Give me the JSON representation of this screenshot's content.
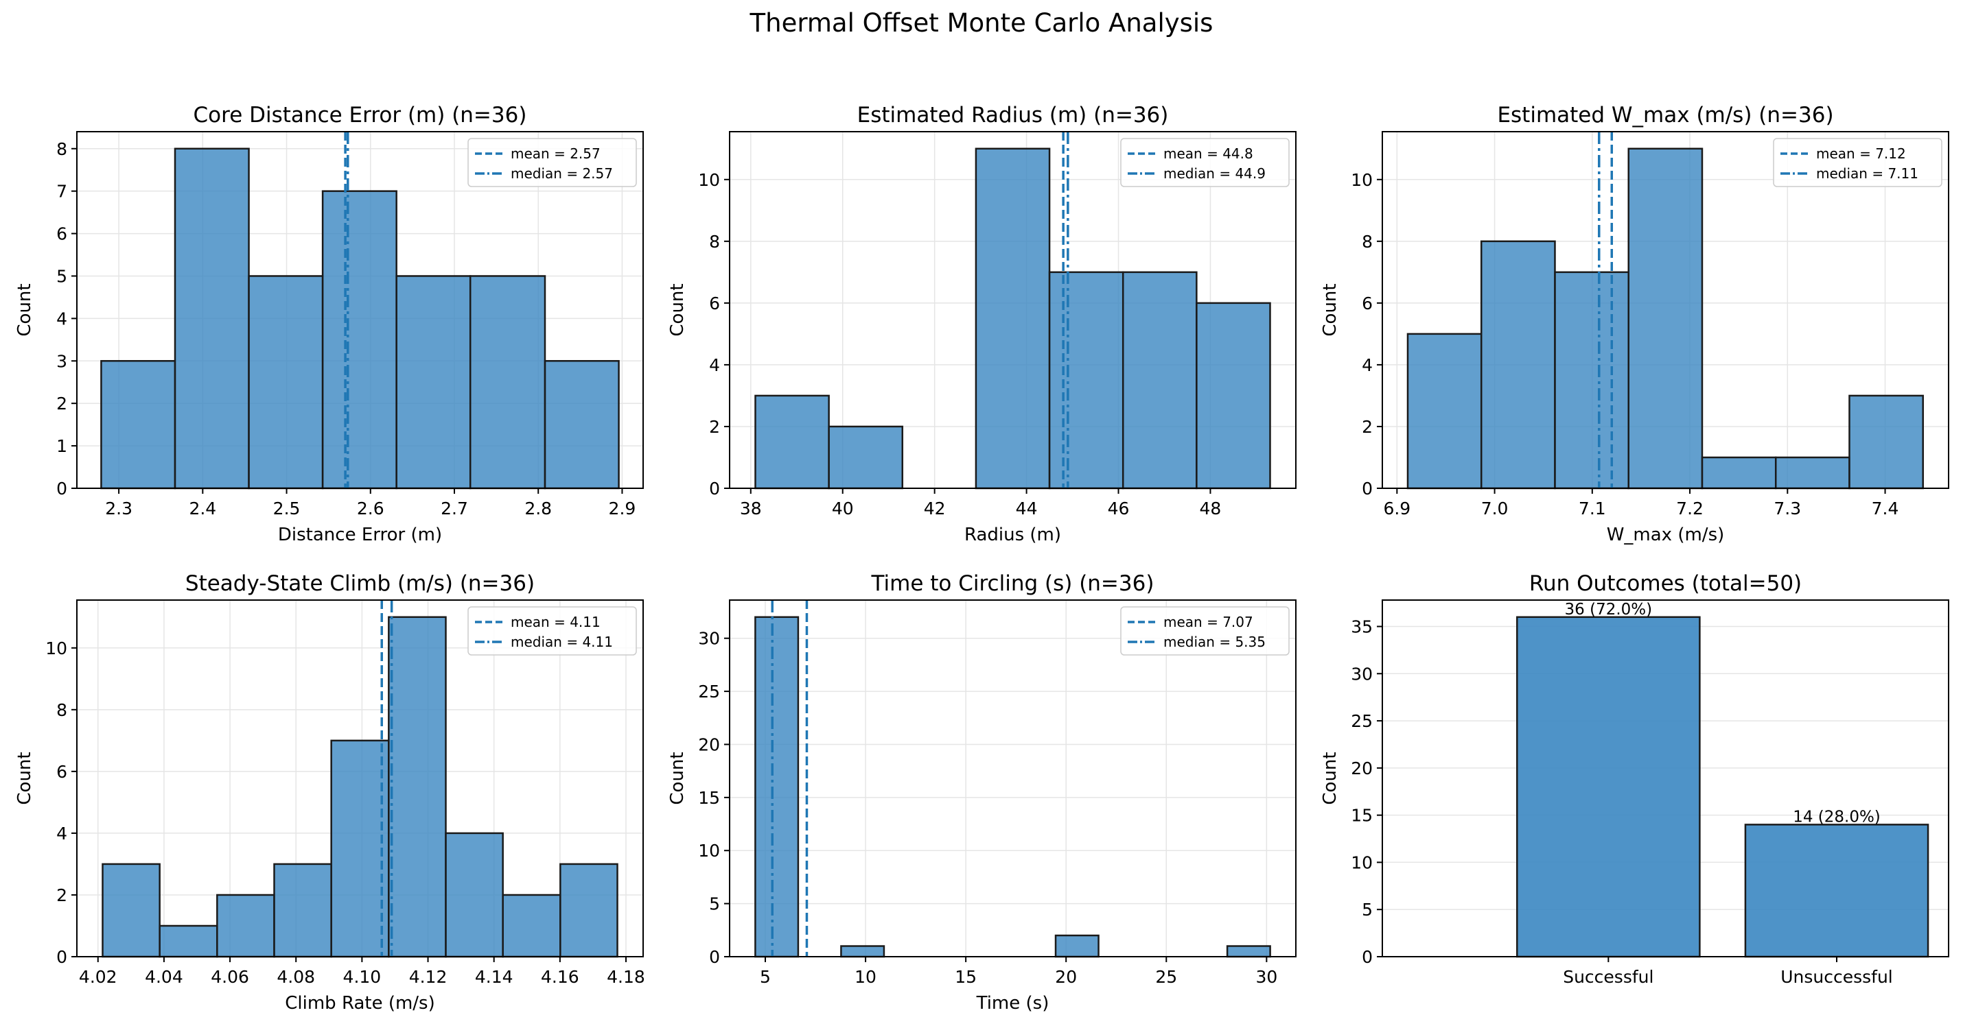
{
  "figure": {
    "title": "Thermal Offset Monte Carlo Analysis"
  },
  "colors": {
    "bar_fill": "#3b87c2",
    "bar_edge": "#1a1a1a",
    "line": "#1f77b4",
    "grid": "#e5e5e5"
  },
  "chart_data": [
    {
      "type": "bar",
      "title": "Core Distance Error (m)  (n=36)",
      "xlabel": "Distance Error (m)",
      "ylabel": "Count",
      "bin_edges": [
        2.279,
        2.367,
        2.455,
        2.543,
        2.631,
        2.719,
        2.808,
        2.896
      ],
      "values": [
        3,
        8,
        5,
        7,
        5,
        5,
        3
      ],
      "xlim": [
        2.25,
        2.925
      ],
      "ylim": [
        0,
        8.4
      ],
      "xticks": [
        2.3,
        2.4,
        2.5,
        2.6,
        2.7,
        2.8,
        2.9
      ],
      "xtick_labels": [
        "2.3",
        "2.4",
        "2.5",
        "2.6",
        "2.7",
        "2.8",
        "2.9"
      ],
      "yticks": [
        0,
        1,
        2,
        3,
        4,
        5,
        6,
        7,
        8
      ],
      "mean": 2.57,
      "median": 2.573,
      "legend": {
        "mean": "mean = 2.57",
        "median": "median = 2.57",
        "position": "upper right"
      },
      "grid": true
    },
    {
      "type": "bar",
      "title": "Estimated Radius (m)  (n=36)",
      "xlabel": "Radius (m)",
      "ylabel": "Count",
      "bin_edges": [
        38.1,
        39.7,
        41.3,
        42.9,
        44.5,
        46.1,
        47.7,
        49.3
      ],
      "values": [
        3,
        2,
        0,
        11,
        7,
        7,
        6
      ],
      "xlim": [
        37.54,
        49.86
      ],
      "ylim": [
        0,
        11.55
      ],
      "xticks": [
        38,
        40,
        42,
        44,
        46,
        48
      ],
      "xtick_labels": [
        "38",
        "40",
        "42",
        "44",
        "46",
        "48"
      ],
      "yticks": [
        0,
        2,
        4,
        6,
        8,
        10
      ],
      "mean": 44.8,
      "median": 44.9,
      "legend": {
        "mean": "mean = 44.8",
        "median": "median = 44.9",
        "position": "upper right"
      },
      "grid": true
    },
    {
      "type": "bar",
      "title": "Estimated W_max (m/s)  (n=36)",
      "xlabel": "W_max (m/s)",
      "ylabel": "Count",
      "bin_edges": [
        6.911,
        6.9864,
        7.0618,
        7.1372,
        7.2126,
        7.288,
        7.3634,
        7.4388
      ],
      "values": [
        5,
        8,
        7,
        11,
        1,
        1,
        3
      ],
      "xlim": [
        6.885,
        7.465
      ],
      "ylim": [
        0,
        11.55
      ],
      "xticks": [
        6.9,
        7.0,
        7.1,
        7.2,
        7.3,
        7.4
      ],
      "xtick_labels": [
        "6.9",
        "7.0",
        "7.1",
        "7.2",
        "7.3",
        "7.4"
      ],
      "yticks": [
        0,
        2,
        4,
        6,
        8,
        10
      ],
      "mean": 7.12,
      "median": 7.107,
      "legend": {
        "mean": "mean = 7.12",
        "median": "median = 7.11",
        "position": "upper right"
      },
      "grid": true
    },
    {
      "type": "bar",
      "title": "Steady-State Climb (m/s)  (n=36)",
      "xlabel": "Climb Rate (m/s)",
      "ylabel": "Count",
      "bin_edges": [
        4.0214,
        4.0387,
        4.0561,
        4.0734,
        4.0907,
        4.1081,
        4.1254,
        4.1427,
        4.1601,
        4.1774
      ],
      "values": [
        3,
        1,
        2,
        3,
        7,
        11,
        4,
        2,
        3
      ],
      "xlim": [
        4.0136,
        4.1852
      ],
      "ylim": [
        0,
        11.55
      ],
      "xticks": [
        4.02,
        4.04,
        4.06,
        4.08,
        4.1,
        4.12,
        4.14,
        4.16,
        4.18
      ],
      "xtick_labels": [
        "4.02",
        "4.04",
        "4.06",
        "4.08",
        "4.10",
        "4.12",
        "4.14",
        "4.16",
        "4.18"
      ],
      "yticks": [
        0,
        2,
        4,
        6,
        8,
        10
      ],
      "mean": 4.106,
      "median": 4.109,
      "legend": {
        "mean": "mean = 4.11",
        "median": "median = 4.11",
        "position": "upper right"
      },
      "grid": true
    },
    {
      "type": "bar",
      "title": "Time to Circling (s)  (n=36)",
      "xlabel": "Time (s)",
      "ylabel": "Count",
      "bin_edges": [
        4.5,
        6.64,
        8.78,
        10.92,
        13.06,
        15.2,
        17.34,
        19.48,
        21.62,
        23.76,
        25.9,
        28.04,
        30.18
      ],
      "values": [
        32,
        0,
        1,
        0,
        0,
        0,
        0,
        2,
        0,
        0,
        0,
        1
      ],
      "xlim": [
        3.22,
        31.46
      ],
      "ylim": [
        0,
        33.6
      ],
      "xticks": [
        5,
        10,
        15,
        20,
        25,
        30
      ],
      "xtick_labels": [
        "5",
        "10",
        "15",
        "20",
        "25",
        "30"
      ],
      "yticks": [
        0,
        5,
        10,
        15,
        20,
        25,
        30
      ],
      "mean": 7.07,
      "median": 5.35,
      "legend": {
        "mean": "mean = 7.07",
        "median": "median = 5.35",
        "position": "upper right"
      },
      "grid": true
    },
    {
      "type": "bar",
      "title": "Run Outcomes  (total=50)",
      "xlabel": "",
      "ylabel": "Count",
      "categories": [
        "Successful",
        "Unsuccessful"
      ],
      "values": [
        36,
        14
      ],
      "data_labels": [
        "36 (72.0%)",
        "14 (28.0%)"
      ],
      "ylim": [
        0,
        37.8
      ],
      "yticks": [
        0,
        5,
        10,
        15,
        20,
        25,
        30,
        35
      ],
      "grid": true
    }
  ]
}
